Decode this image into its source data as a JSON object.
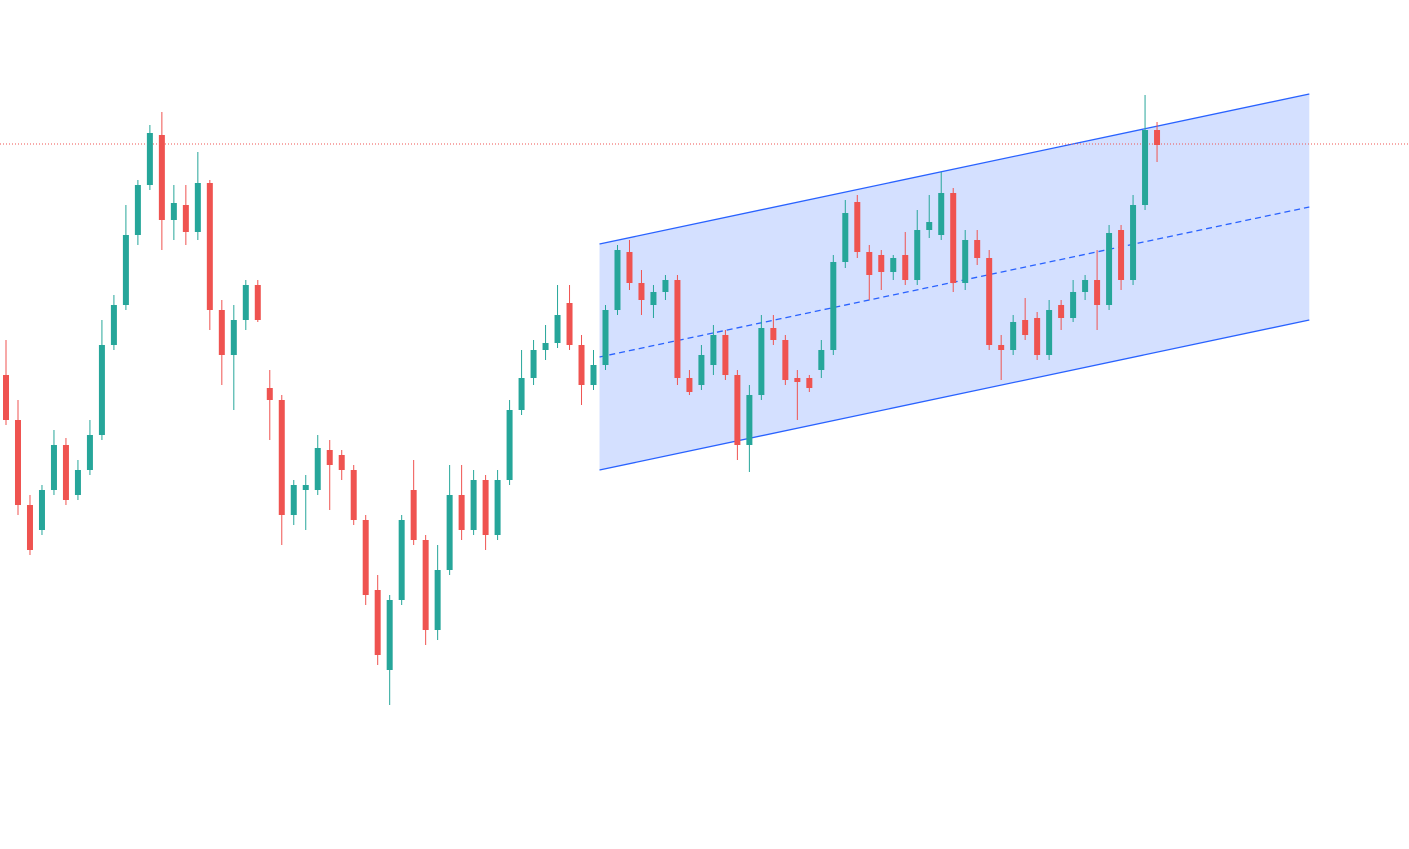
{
  "chart_data": {
    "type": "candlestick",
    "ylim": [
      0,
      849
    ],
    "up_color": "#26a69a",
    "down_color": "#ef5350",
    "open": [
      474,
      429,
      344,
      319,
      359,
      404,
      354,
      379,
      414,
      504,
      544,
      614,
      664,
      714,
      629,
      644,
      617,
      666,
      539,
      494,
      529,
      564,
      461,
      449,
      334,
      359,
      359,
      399,
      394,
      379,
      329,
      259,
      179,
      249,
      359,
      309,
      219,
      279,
      354,
      319,
      369,
      314,
      369,
      439,
      471,
      499,
      506,
      546,
      504,
      464,
      484,
      539,
      597,
      566,
      544,
      557,
      569,
      471,
      464,
      484,
      514,
      474,
      404,
      454,
      521,
      509,
      471,
      471,
      479,
      499,
      587,
      647,
      597,
      594,
      577,
      594,
      569,
      619,
      614,
      656,
      566,
      609,
      591,
      504,
      499,
      529,
      531,
      494,
      544,
      531,
      557,
      569,
      544,
      619,
      569,
      644,
      719
    ],
    "high": [
      509,
      449,
      354,
      364,
      419,
      411,
      389,
      429,
      529,
      554,
      644,
      669,
      724,
      737,
      664,
      664,
      697,
      669,
      549,
      544,
      569,
      569,
      479,
      454,
      369,
      374,
      414,
      409,
      399,
      384,
      334,
      274,
      254,
      334,
      389,
      314,
      304,
      384,
      384,
      379,
      374,
      379,
      449,
      499,
      509,
      524,
      564,
      564,
      514,
      499,
      544,
      604,
      609,
      579,
      564,
      574,
      574,
      479,
      504,
      524,
      519,
      479,
      464,
      534,
      534,
      514,
      479,
      474,
      509,
      594,
      649,
      654,
      604,
      599,
      594,
      617,
      639,
      654,
      677,
      661,
      619,
      619,
      599,
      514,
      534,
      551,
      537,
      549,
      549,
      569,
      574,
      599,
      624,
      624,
      654,
      754,
      727
    ],
    "low": [
      424,
      334,
      294,
      314,
      354,
      344,
      349,
      374,
      409,
      499,
      539,
      604,
      659,
      599,
      609,
      604,
      609,
      519,
      464,
      439,
      519,
      527,
      409,
      304,
      324,
      319,
      354,
      339,
      369,
      324,
      244,
      184,
      144,
      244,
      304,
      204,
      209,
      274,
      309,
      314,
      299,
      309,
      364,
      434,
      464,
      489,
      501,
      499,
      444,
      459,
      479,
      534,
      559,
      534,
      531,
      549,
      464,
      454,
      459,
      474,
      469,
      389,
      377,
      449,
      504,
      464,
      429,
      457,
      471,
      494,
      581,
      591,
      549,
      559,
      569,
      564,
      564,
      611,
      609,
      557,
      559,
      584,
      499,
      469,
      494,
      509,
      489,
      489,
      519,
      527,
      549,
      519,
      539,
      559,
      564,
      639,
      687
    ],
    "close": [
      429,
      344,
      299,
      359,
      404,
      349,
      379,
      414,
      504,
      544,
      614,
      664,
      716,
      629,
      646,
      617,
      666,
      539,
      494,
      529,
      564,
      529,
      449,
      334,
      364,
      364,
      401,
      384,
      379,
      329,
      254,
      194,
      249,
      329,
      309,
      219,
      279,
      354,
      319,
      369,
      314,
      369,
      439,
      471,
      499,
      506,
      534,
      504,
      464,
      484,
      539,
      599,
      566,
      549,
      557,
      569,
      471,
      457,
      494,
      514,
      474,
      404,
      454,
      521,
      509,
      469,
      467,
      461,
      499,
      587,
      636,
      597,
      574,
      577,
      591,
      569,
      619,
      627,
      656,
      566,
      609,
      591,
      504,
      499,
      527,
      514,
      494,
      539,
      531,
      557,
      569,
      544,
      616,
      569,
      644,
      719,
      704
    ],
    "price_line": {
      "value": 705,
      "color": "#ef5350"
    },
    "channel": {
      "x": [
        49.5,
        108.7
      ],
      "upper": [
        605,
        755
      ],
      "middle": [
        492,
        642
      ],
      "lower": [
        379,
        529
      ],
      "color": "#2962ff"
    }
  }
}
